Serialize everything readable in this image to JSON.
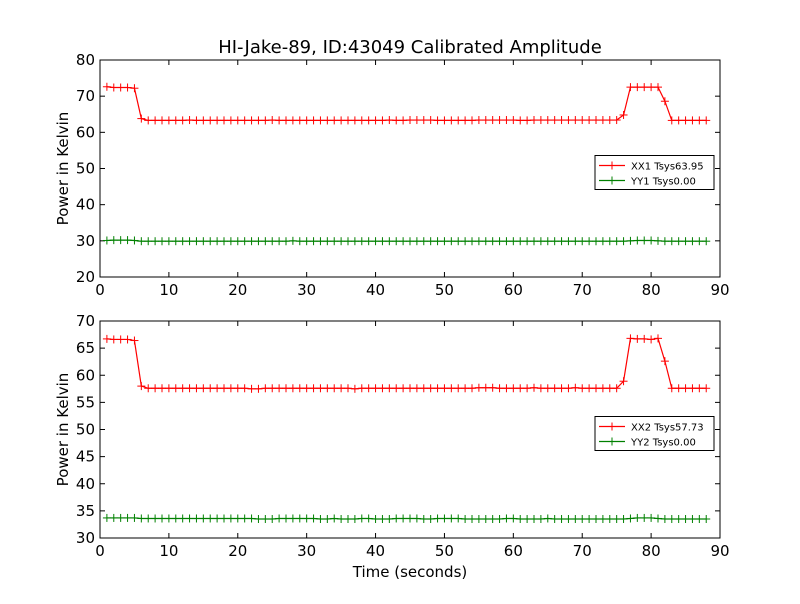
{
  "figure": {
    "title": "HI-Jake-89, ID:43049 Calibrated Amplitude",
    "xlabel": "Time (seconds)"
  },
  "chart_data": [
    {
      "type": "line",
      "ylabel": "Power in Kelvin",
      "xlim": [
        0,
        90
      ],
      "ylim": [
        20,
        80
      ],
      "xticks": [
        0,
        10,
        20,
        30,
        40,
        50,
        60,
        70,
        80,
        90
      ],
      "yticks": [
        20,
        30,
        40,
        50,
        60,
        70,
        80
      ],
      "grid": false,
      "legend_position": "center-right",
      "series": [
        {
          "name": "XX1 Tsys63.95",
          "color": "#ff0000",
          "marker": "plus",
          "x": [
            1,
            2,
            3,
            4,
            5,
            6,
            7,
            8,
            9,
            10,
            11,
            12,
            13,
            14,
            15,
            16,
            17,
            18,
            19,
            20,
            21,
            22,
            23,
            24,
            25,
            26,
            27,
            28,
            29,
            30,
            31,
            32,
            33,
            34,
            35,
            36,
            37,
            38,
            39,
            40,
            41,
            42,
            43,
            44,
            45,
            46,
            47,
            48,
            49,
            50,
            51,
            52,
            53,
            54,
            55,
            56,
            57,
            58,
            59,
            60,
            61,
            62,
            63,
            64,
            65,
            66,
            67,
            68,
            69,
            70,
            71,
            72,
            73,
            74,
            75,
            76,
            77,
            78,
            79,
            80,
            81,
            82,
            83,
            84,
            85,
            86,
            87,
            88
          ],
          "y": [
            72.6,
            72.4,
            72.4,
            72.4,
            72.2,
            63.8,
            63.3,
            63.3,
            63.3,
            63.3,
            63.3,
            63.3,
            63.4,
            63.3,
            63.3,
            63.3,
            63.3,
            63.3,
            63.3,
            63.3,
            63.3,
            63.3,
            63.3,
            63.3,
            63.4,
            63.3,
            63.3,
            63.3,
            63.3,
            63.3,
            63.3,
            63.3,
            63.3,
            63.3,
            63.3,
            63.3,
            63.3,
            63.3,
            63.3,
            63.3,
            63.3,
            63.4,
            63.3,
            63.3,
            63.4,
            63.4,
            63.4,
            63.4,
            63.3,
            63.3,
            63.3,
            63.3,
            63.3,
            63.3,
            63.4,
            63.4,
            63.4,
            63.4,
            63.4,
            63.4,
            63.3,
            63.3,
            63.4,
            63.4,
            63.4,
            63.4,
            63.4,
            63.4,
            63.4,
            63.4,
            63.4,
            63.4,
            63.4,
            63.4,
            63.4,
            64.8,
            72.5,
            72.5,
            72.5,
            72.5,
            72.5,
            68.6,
            63.3,
            63.3,
            63.3,
            63.3,
            63.3,
            63.3
          ]
        },
        {
          "name": "YY1 Tsys0.00",
          "color": "#008000",
          "marker": "plus",
          "x": [
            1,
            2,
            3,
            4,
            5,
            6,
            7,
            8,
            9,
            10,
            11,
            12,
            13,
            14,
            15,
            16,
            17,
            18,
            19,
            20,
            21,
            22,
            23,
            24,
            25,
            26,
            27,
            28,
            29,
            30,
            31,
            32,
            33,
            34,
            35,
            36,
            37,
            38,
            39,
            40,
            41,
            42,
            43,
            44,
            45,
            46,
            47,
            48,
            49,
            50,
            51,
            52,
            53,
            54,
            55,
            56,
            57,
            58,
            59,
            60,
            61,
            62,
            63,
            64,
            65,
            66,
            67,
            68,
            69,
            70,
            71,
            72,
            73,
            74,
            75,
            76,
            77,
            78,
            79,
            80,
            81,
            82,
            83,
            84,
            85,
            86,
            87,
            88
          ],
          "y": [
            30.1,
            30.2,
            30.2,
            30.2,
            30.1,
            29.9,
            29.9,
            29.9,
            29.9,
            29.9,
            29.9,
            29.9,
            29.9,
            29.9,
            29.9,
            29.9,
            29.9,
            29.9,
            29.9,
            29.9,
            29.9,
            29.9,
            29.9,
            29.9,
            29.9,
            29.9,
            29.9,
            30.0,
            29.9,
            29.9,
            29.9,
            29.9,
            29.9,
            29.9,
            29.9,
            29.9,
            29.9,
            29.9,
            29.9,
            29.9,
            29.9,
            29.9,
            29.9,
            29.9,
            29.9,
            29.9,
            29.9,
            29.9,
            29.9,
            29.9,
            29.9,
            29.9,
            29.9,
            29.9,
            29.9,
            29.9,
            29.9,
            29.9,
            29.9,
            29.9,
            29.9,
            29.9,
            29.9,
            29.9,
            29.9,
            29.9,
            29.9,
            29.9,
            29.9,
            29.9,
            29.9,
            29.9,
            29.9,
            29.9,
            29.9,
            29.9,
            30.0,
            30.1,
            30.1,
            30.1,
            30.0,
            29.9,
            29.9,
            29.9,
            29.9,
            29.9,
            29.9,
            29.9
          ]
        }
      ]
    },
    {
      "type": "line",
      "ylabel": "Power in Kelvin",
      "xlim": [
        0,
        90
      ],
      "ylim": [
        30,
        70
      ],
      "xticks": [
        0,
        10,
        20,
        30,
        40,
        50,
        60,
        70,
        80,
        90
      ],
      "yticks": [
        30,
        35,
        40,
        45,
        50,
        55,
        60,
        65,
        70
      ],
      "grid": false,
      "legend_position": "center-right",
      "series": [
        {
          "name": "XX2 Tsys57.73",
          "color": "#ff0000",
          "marker": "plus",
          "x": [
            1,
            2,
            3,
            4,
            5,
            6,
            7,
            8,
            9,
            10,
            11,
            12,
            13,
            14,
            15,
            16,
            17,
            18,
            19,
            20,
            21,
            22,
            23,
            24,
            25,
            26,
            27,
            28,
            29,
            30,
            31,
            32,
            33,
            34,
            35,
            36,
            37,
            38,
            39,
            40,
            41,
            42,
            43,
            44,
            45,
            46,
            47,
            48,
            49,
            50,
            51,
            52,
            53,
            54,
            55,
            56,
            57,
            58,
            59,
            60,
            61,
            62,
            63,
            64,
            65,
            66,
            67,
            68,
            69,
            70,
            71,
            72,
            73,
            74,
            75,
            76,
            77,
            78,
            79,
            80,
            81,
            82,
            83,
            84,
            85,
            86,
            87,
            88
          ],
          "y": [
            66.7,
            66.6,
            66.6,
            66.6,
            66.4,
            58.0,
            57.6,
            57.6,
            57.6,
            57.6,
            57.6,
            57.6,
            57.6,
            57.6,
            57.6,
            57.6,
            57.6,
            57.6,
            57.6,
            57.6,
            57.6,
            57.5,
            57.5,
            57.6,
            57.6,
            57.6,
            57.6,
            57.6,
            57.6,
            57.6,
            57.6,
            57.6,
            57.6,
            57.6,
            57.6,
            57.6,
            57.5,
            57.6,
            57.6,
            57.6,
            57.6,
            57.6,
            57.6,
            57.6,
            57.6,
            57.6,
            57.6,
            57.6,
            57.6,
            57.6,
            57.6,
            57.6,
            57.6,
            57.6,
            57.7,
            57.7,
            57.7,
            57.6,
            57.6,
            57.6,
            57.6,
            57.6,
            57.7,
            57.6,
            57.6,
            57.6,
            57.6,
            57.6,
            57.7,
            57.6,
            57.6,
            57.6,
            57.6,
            57.6,
            57.6,
            58.9,
            66.8,
            66.7,
            66.7,
            66.6,
            66.8,
            62.6,
            57.6,
            57.6,
            57.6,
            57.6,
            57.6,
            57.6
          ]
        },
        {
          "name": "YY2 Tsys0.00",
          "color": "#008000",
          "marker": "plus",
          "x": [
            1,
            2,
            3,
            4,
            5,
            6,
            7,
            8,
            9,
            10,
            11,
            12,
            13,
            14,
            15,
            16,
            17,
            18,
            19,
            20,
            21,
            22,
            23,
            24,
            25,
            26,
            27,
            28,
            29,
            30,
            31,
            32,
            33,
            34,
            35,
            36,
            37,
            38,
            39,
            40,
            41,
            42,
            43,
            44,
            45,
            46,
            47,
            48,
            49,
            50,
            51,
            52,
            53,
            54,
            55,
            56,
            57,
            58,
            59,
            60,
            61,
            62,
            63,
            64,
            65,
            66,
            67,
            68,
            69,
            70,
            71,
            72,
            73,
            74,
            75,
            76,
            77,
            78,
            79,
            80,
            81,
            82,
            83,
            84,
            85,
            86,
            87,
            88
          ],
          "y": [
            33.7,
            33.7,
            33.7,
            33.7,
            33.7,
            33.6,
            33.6,
            33.6,
            33.6,
            33.6,
            33.6,
            33.6,
            33.6,
            33.6,
            33.6,
            33.6,
            33.6,
            33.6,
            33.6,
            33.6,
            33.6,
            33.6,
            33.5,
            33.5,
            33.5,
            33.6,
            33.6,
            33.6,
            33.6,
            33.6,
            33.6,
            33.5,
            33.5,
            33.6,
            33.5,
            33.5,
            33.5,
            33.6,
            33.6,
            33.5,
            33.5,
            33.5,
            33.6,
            33.6,
            33.6,
            33.6,
            33.5,
            33.5,
            33.6,
            33.6,
            33.6,
            33.6,
            33.5,
            33.5,
            33.5,
            33.5,
            33.5,
            33.5,
            33.6,
            33.6,
            33.5,
            33.5,
            33.5,
            33.5,
            33.6,
            33.5,
            33.5,
            33.5,
            33.5,
            33.5,
            33.5,
            33.5,
            33.5,
            33.5,
            33.5,
            33.5,
            33.6,
            33.7,
            33.7,
            33.7,
            33.6,
            33.5,
            33.5,
            33.5,
            33.5,
            33.5,
            33.5,
            33.5
          ]
        }
      ]
    }
  ]
}
